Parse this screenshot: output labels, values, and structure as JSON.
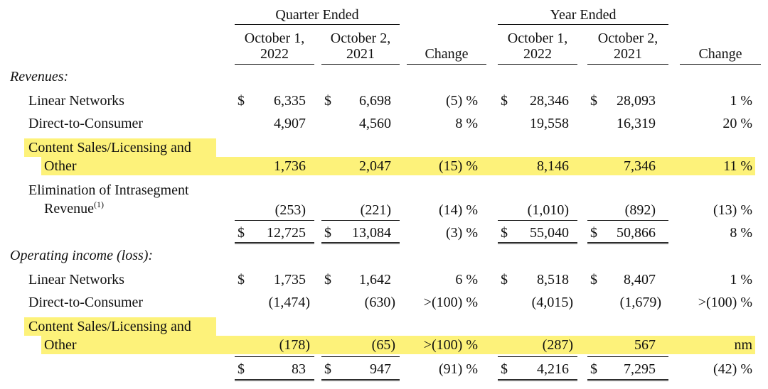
{
  "header": {
    "quarter_group": "Quarter Ended",
    "year_group": "Year Ended",
    "col_q1_line1": "October 1,",
    "col_q1_line2": "2022",
    "col_q2_line1": "October 2,",
    "col_q2_line2": "2021",
    "col_y1_line1": "October 1,",
    "col_y1_line2": "2022",
    "col_y2_line1": "October 2,",
    "col_y2_line2": "2021",
    "change": "Change"
  },
  "revenues": {
    "title": "Revenues:",
    "linear": {
      "label": "Linear Networks",
      "q22": "6,335",
      "q21": "6,698",
      "qc": "(5) %",
      "y22": "28,346",
      "y21": "28,093",
      "yc": "1 %"
    },
    "dtc": {
      "label": "Direct-to-Consumer",
      "q22": "4,907",
      "q21": "4,560",
      "qc": "8 %",
      "y22": "19,558",
      "y21": "16,319",
      "yc": "20 %"
    },
    "content": {
      "label1": "Content Sales/Licensing and",
      "label2": "Other",
      "q22": "1,736",
      "q21": "2,047",
      "qc": "(15) %",
      "y22": "8,146",
      "y21": "7,346",
      "yc": "11 %"
    },
    "elim": {
      "label1": "Elimination of Intrasegment",
      "label2": "Revenue",
      "footnote": "(1)",
      "q22": "(253)",
      "q21": "(221)",
      "qc": "(14) %",
      "y22": "(1,010)",
      "y21": "(892)",
      "yc": "(13) %"
    },
    "total": {
      "q22": "12,725",
      "q21": "13,084",
      "qc": "(3) %",
      "y22": "55,040",
      "y21": "50,866",
      "yc": "8 %"
    }
  },
  "operating": {
    "title": "Operating income (loss):",
    "linear": {
      "label": "Linear Networks",
      "q22": "1,735",
      "q21": "1,642",
      "qc": "6 %",
      "y22": "8,518",
      "y21": "8,407",
      "yc": "1 %"
    },
    "dtc": {
      "label": "Direct-to-Consumer",
      "q22": "(1,474)",
      "q21": "(630)",
      "qc": ">(100) %",
      "y22": "(4,015)",
      "y21": "(1,679)",
      "yc": ">(100) %"
    },
    "content": {
      "label1": "Content Sales/Licensing and",
      "label2": "Other",
      "q22": "(178)",
      "q21": "(65)",
      "qc": ">(100) %",
      "y22": "(287)",
      "y21": "567",
      "yc": "nm"
    },
    "total": {
      "q22": "83",
      "q21": "947",
      "qc": "(91) %",
      "y22": "4,216",
      "y21": "7,295",
      "yc": "(42) %"
    }
  },
  "currency": "$",
  "highlight_color": "#fdf27a"
}
